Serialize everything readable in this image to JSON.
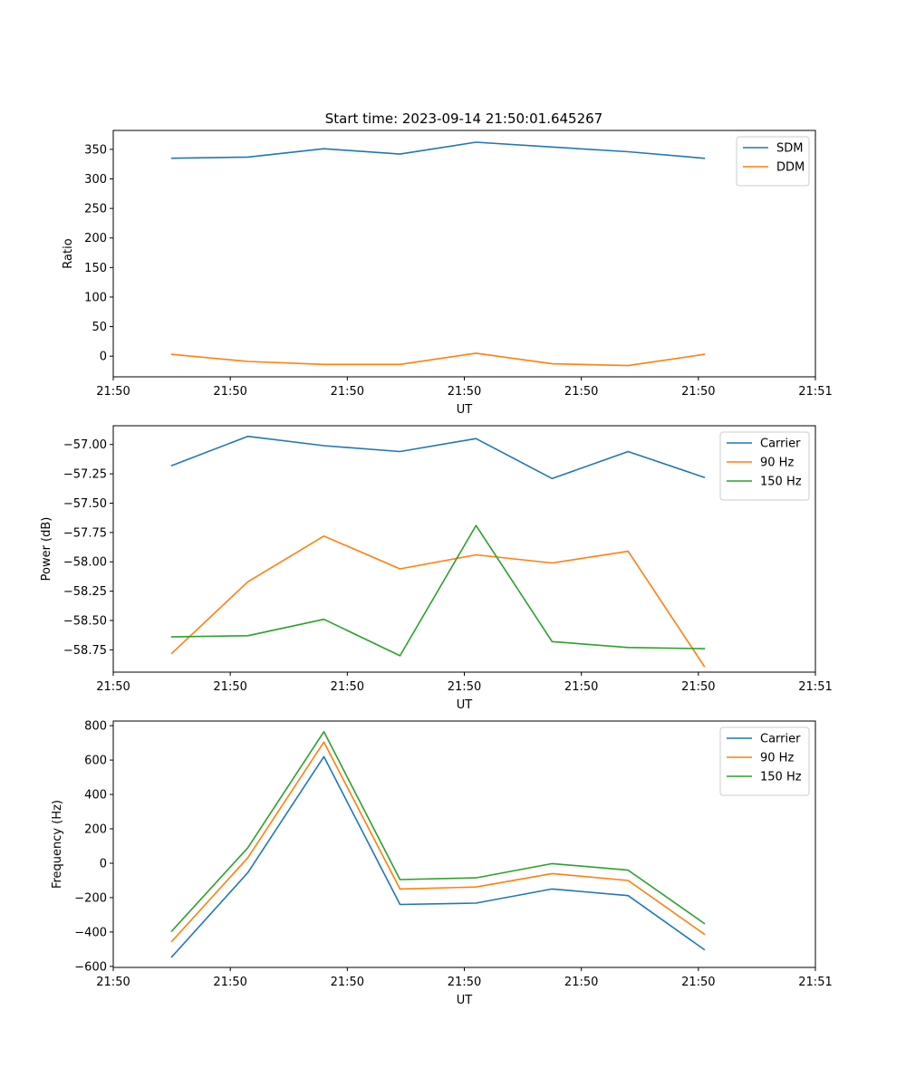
{
  "figure_title": "Start time: 2023-09-14 21:50:01.645267",
  "chart_data": [
    {
      "type": "line",
      "title": "Start time: 2023-09-14 21:50:01.645267",
      "xlabel": "UT",
      "ylabel": "Ratio",
      "x_ticks": [
        "21:50",
        "21:50",
        "21:50",
        "21:50",
        "21:50",
        "21:50",
        "21:51"
      ],
      "x": [
        0.5,
        1.15,
        1.8,
        2.45,
        3.1,
        3.75,
        4.4,
        5.05
      ],
      "xlim": [
        0,
        6
      ],
      "ylim": [
        -35,
        382
      ],
      "y_ticks": [
        0,
        50,
        100,
        150,
        200,
        250,
        300,
        350
      ],
      "y_tick_labels": [
        "0",
        "50",
        "100",
        "150",
        "200",
        "250",
        "300",
        "350"
      ],
      "legend_position": "upper right",
      "series": [
        {
          "name": "SDM",
          "color": "#1f77b4",
          "values": [
            335,
            337,
            351,
            342,
            362,
            354,
            346,
            335
          ]
        },
        {
          "name": "DDM",
          "color": "#ff7f0e",
          "values": [
            3,
            -9,
            -14,
            -14,
            5,
            -13,
            -16,
            3
          ]
        }
      ]
    },
    {
      "type": "line",
      "xlabel": "UT",
      "ylabel": "Power (dB)",
      "x_ticks": [
        "21:50",
        "21:50",
        "21:50",
        "21:50",
        "21:50",
        "21:50",
        "21:51"
      ],
      "x": [
        0.5,
        1.15,
        1.8,
        2.45,
        3.1,
        3.75,
        4.4,
        5.05
      ],
      "xlim": [
        0,
        6
      ],
      "ylim": [
        -58.94,
        -56.84
      ],
      "y_ticks": [
        -58.75,
        -58.5,
        -58.25,
        -58.0,
        -57.75,
        -57.5,
        -57.25,
        -57.0
      ],
      "y_tick_labels": [
        "−58.75",
        "−58.50",
        "−58.25",
        "−58.00",
        "−57.75",
        "−57.50",
        "−57.25",
        "−57.00"
      ],
      "legend_position": "upper right",
      "series": [
        {
          "name": "Carrier",
          "color": "#1f77b4",
          "values": [
            -57.18,
            -56.93,
            -57.01,
            -57.06,
            -56.95,
            -57.29,
            -57.06,
            -57.28
          ]
        },
        {
          "name": "90 Hz",
          "color": "#ff7f0e",
          "values": [
            -58.78,
            -58.17,
            -57.78,
            -58.06,
            -57.94,
            -58.01,
            -57.91,
            -58.89
          ]
        },
        {
          "name": "150 Hz",
          "color": "#2ca02c",
          "values": [
            -58.64,
            -58.63,
            -58.49,
            -58.8,
            -57.69,
            -58.68,
            -58.73,
            -58.74
          ]
        }
      ]
    },
    {
      "type": "line",
      "xlabel": "UT",
      "ylabel": "Frequency (Hz)",
      "x_ticks": [
        "21:50",
        "21:50",
        "21:50",
        "21:50",
        "21:50",
        "21:50",
        "21:51"
      ],
      "x": [
        0.5,
        1.15,
        1.8,
        2.45,
        3.1,
        3.75,
        4.4,
        5.05
      ],
      "xlim": [
        0,
        6
      ],
      "ylim": [
        -606,
        827
      ],
      "y_ticks": [
        -600,
        -400,
        -200,
        0,
        200,
        400,
        600,
        800
      ],
      "y_tick_labels": [
        "−600",
        "−400",
        "−200",
        "0",
        "200",
        "400",
        "600",
        "800"
      ],
      "legend_position": "upper right",
      "series": [
        {
          "name": "Carrier",
          "color": "#1f77b4",
          "values": [
            -545,
            -55,
            620,
            -240,
            -232,
            -150,
            -188,
            -502
          ]
        },
        {
          "name": "90 Hz",
          "color": "#ff7f0e",
          "values": [
            -455,
            32,
            705,
            -150,
            -138,
            -60,
            -100,
            -412
          ]
        },
        {
          "name": "150 Hz",
          "color": "#2ca02c",
          "values": [
            -395,
            90,
            765,
            -95,
            -85,
            -2,
            -40,
            -350
          ]
        }
      ]
    }
  ]
}
